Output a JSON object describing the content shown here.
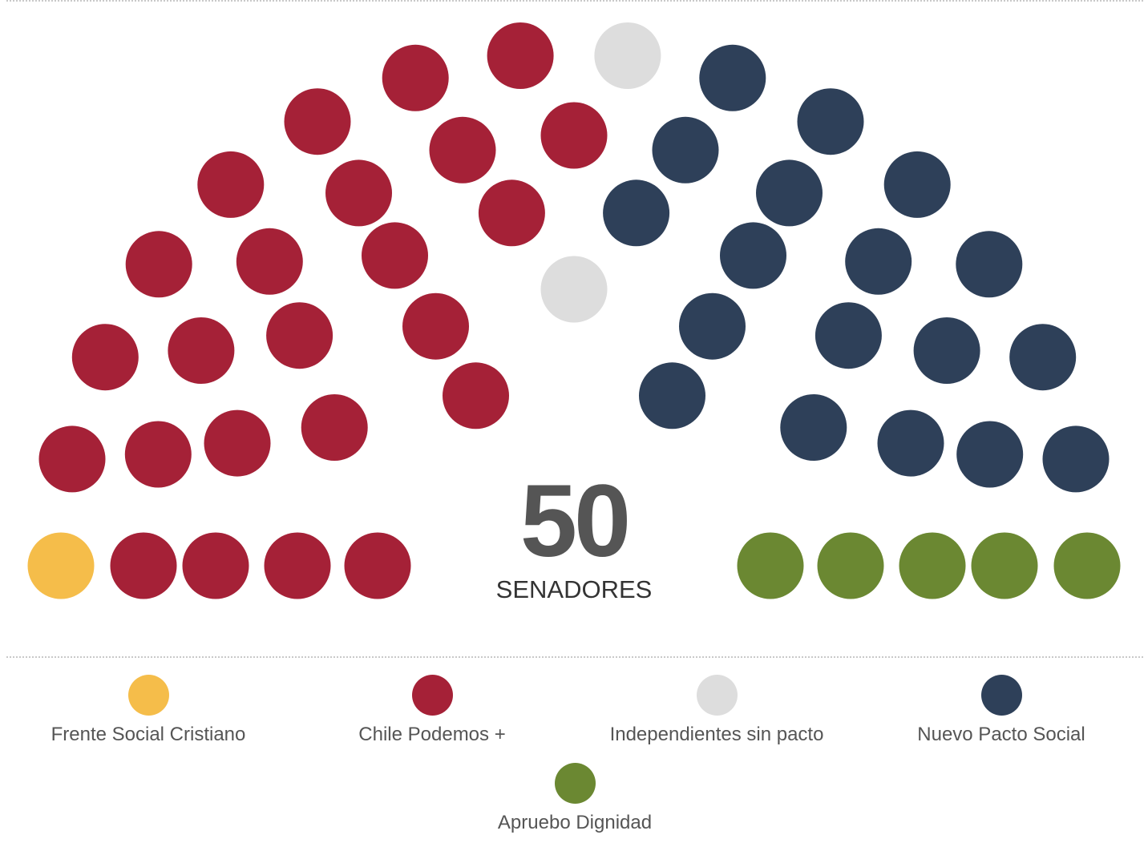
{
  "chart_data": {
    "type": "parliament",
    "total": 50,
    "total_label": "SENADORES",
    "series": [
      {
        "name": "Frente Social Cristiano",
        "value": 1,
        "color": "#f5bd4a"
      },
      {
        "name": "Chile Podemos +",
        "value": 24,
        "color": "#a52137"
      },
      {
        "name": "Independientes sin pacto",
        "value": 2,
        "color": "#dddddd"
      },
      {
        "name": "Nuevo Pacto Social",
        "value": 18,
        "color": "#2e4059"
      },
      {
        "name": "Apruebo Dignidad",
        "value": 5,
        "color": "#6b8832"
      }
    ]
  }
}
